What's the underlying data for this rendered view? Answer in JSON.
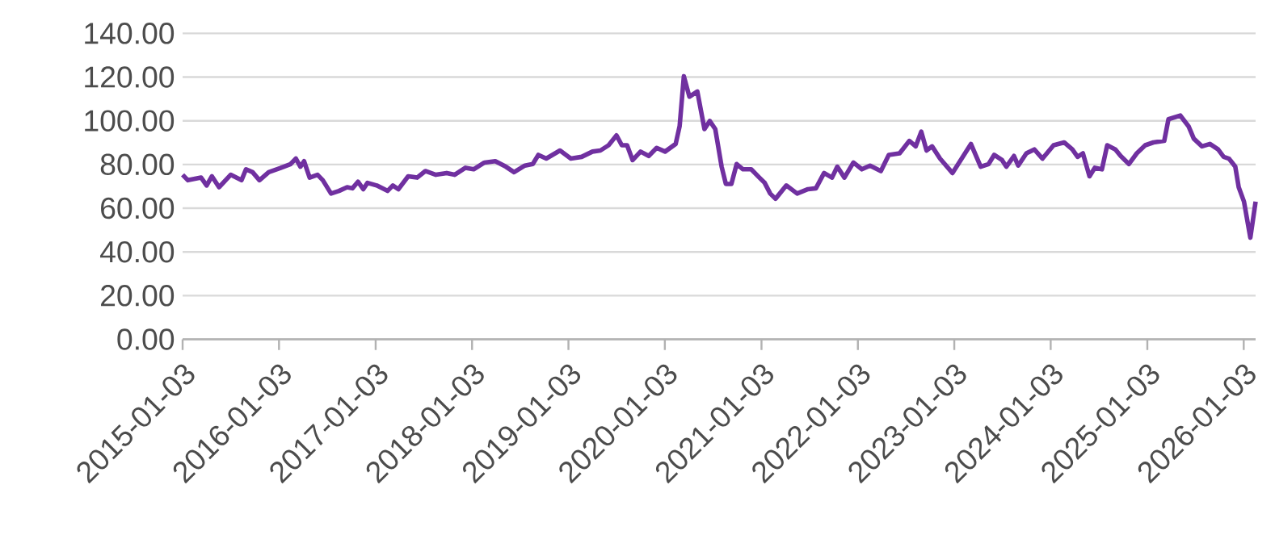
{
  "chart_data": {
    "type": "line",
    "color": "#7030a0",
    "grid": "y",
    "xlim": [
      "2015-01-03",
      "2026-02-17"
    ],
    "ylim": [
      0,
      140
    ],
    "xticks": [
      "2015-01-03",
      "2016-01-03",
      "2017-01-03",
      "2018-01-03",
      "2019-01-03",
      "2020-01-03",
      "2021-01-03",
      "2022-01-03",
      "2023-01-03",
      "2024-01-03",
      "2025-01-03",
      "2026-01-03"
    ],
    "yticks": [
      {
        "value": 0,
        "label": "0.00"
      },
      {
        "value": 20,
        "label": "20.00"
      },
      {
        "value": 40,
        "label": "40.00"
      },
      {
        "value": 60,
        "label": "60.00"
      },
      {
        "value": 80,
        "label": "80.00"
      },
      {
        "value": 100,
        "label": "100.00"
      },
      {
        "value": 120,
        "label": "120.00"
      },
      {
        "value": 140,
        "label": "140.00"
      }
    ],
    "x": [
      "2015-01-03",
      "2015-01-23",
      "2015-03-14",
      "2015-04-04",
      "2015-04-24",
      "2015-05-21",
      "2015-07-04",
      "2015-08-14",
      "2015-08-31",
      "2015-09-25",
      "2015-10-21",
      "2015-11-25",
      "2016-01-07",
      "2016-02-16",
      "2016-03-07",
      "2016-03-24",
      "2016-04-07",
      "2016-04-28",
      "2016-05-28",
      "2016-06-17",
      "2016-07-18",
      "2016-08-17",
      "2016-09-17",
      "2016-10-07",
      "2016-10-28",
      "2016-11-17",
      "2016-12-03",
      "2017-01-07",
      "2017-02-17",
      "2017-03-09",
      "2017-03-30",
      "2017-05-06",
      "2017-06-09",
      "2017-07-10",
      "2017-08-19",
      "2017-09-29",
      "2017-10-29",
      "2017-12-09",
      "2018-01-09",
      "2018-02-19",
      "2018-04-01",
      "2018-05-11",
      "2018-06-11",
      "2018-07-22",
      "2018-08-21",
      "2018-09-11",
      "2018-10-11",
      "2018-12-02",
      "2019-01-12",
      "2019-02-22",
      "2019-04-04",
      "2019-05-04",
      "2019-06-04",
      "2019-07-04",
      "2019-07-24",
      "2019-08-13",
      "2019-09-03",
      "2019-10-03",
      "2019-11-03",
      "2019-12-03",
      "2020-01-04",
      "2020-02-13",
      "2020-02-28",
      "2020-03-15",
      "2020-04-05",
      "2020-05-05",
      "2020-06-01",
      "2020-06-21",
      "2020-07-12",
      "2020-08-05",
      "2020-08-21",
      "2020-09-11",
      "2020-10-01",
      "2020-10-25",
      "2020-11-25",
      "2020-12-26",
      "2021-01-15",
      "2021-02-05",
      "2021-02-25",
      "2021-04-07",
      "2021-05-18",
      "2021-06-28",
      "2021-07-28",
      "2021-08-28",
      "2021-09-27",
      "2021-10-17",
      "2021-11-13",
      "2021-12-17",
      "2022-01-18",
      "2022-02-18",
      "2022-03-31",
      "2022-04-30",
      "2022-06-10",
      "2022-07-17",
      "2022-08-10",
      "2022-08-31",
      "2022-09-20",
      "2022-10-11",
      "2022-11-10",
      "2022-12-27",
      "2023-01-31",
      "2023-03-07",
      "2023-04-13",
      "2023-05-13",
      "2023-06-03",
      "2023-07-03",
      "2023-07-19",
      "2023-08-17",
      "2023-09-02",
      "2023-10-03",
      "2023-11-02",
      "2023-12-03",
      "2024-01-14",
      "2024-02-23",
      "2024-03-25",
      "2024-04-14",
      "2024-05-04",
      "2024-05-29",
      "2024-06-18",
      "2024-07-15",
      "2024-08-04",
      "2024-09-04",
      "2024-09-24",
      "2024-10-25",
      "2024-11-24",
      "2024-12-26",
      "2025-01-26",
      "2025-03-08",
      "2025-03-24",
      "2025-05-08",
      "2025-06-08",
      "2025-06-28",
      "2025-07-29",
      "2025-08-28",
      "2025-09-28",
      "2025-10-19",
      "2025-11-08",
      "2025-12-02",
      "2025-12-15",
      "2026-01-04",
      "2026-01-28",
      "2026-02-17"
    ],
    "values": [
      75.3,
      72.8,
      74,
      70.4,
      74.6,
      69.6,
      75.3,
      72.8,
      77.8,
      76.5,
      72.8,
      76.5,
      78.3,
      80.2,
      82.7,
      79,
      81.5,
      74,
      75.3,
      72.8,
      66.7,
      67.9,
      69.6,
      69.1,
      72.1,
      68.7,
      71.6,
      70.4,
      67.9,
      70.4,
      68.7,
      74.6,
      74,
      77,
      75.3,
      76.1,
      75.3,
      78.5,
      77.8,
      80.9,
      81.5,
      79,
      76.5,
      79.5,
      80.2,
      84.4,
      82.7,
      86.4,
      82.7,
      83.5,
      85.9,
      86.4,
      88.8,
      93.3,
      88.8,
      88.8,
      82,
      85.9,
      83.9,
      87.6,
      85.9,
      89.4,
      97.5,
      120.4,
      111,
      113.4,
      96.2,
      99.9,
      96.2,
      79,
      71.1,
      71.1,
      80.2,
      77.8,
      77.8,
      74,
      71.6,
      66.7,
      64.3,
      70.4,
      66.7,
      68.7,
      69.1,
      76.1,
      74,
      79,
      74,
      80.9,
      77.8,
      79.5,
      77,
      84.4,
      85.1,
      90.8,
      88.3,
      95,
      86.4,
      88.3,
      82.7,
      76.1,
      82.7,
      89.4,
      79,
      80.2,
      84.4,
      82,
      79,
      83.9,
      79.5,
      85.1,
      86.9,
      82.7,
      88.8,
      90.1,
      86.9,
      83.5,
      85.1,
      74.6,
      78.5,
      77.8,
      88.8,
      86.9,
      83.9,
      80.2,
      85.1,
      88.8,
      90.1,
      90.8,
      100.7,
      102.4,
      97.5,
      91.8,
      88.3,
      89.4,
      86.9,
      83.5,
      82.7,
      79,
      69.6,
      63,
      46.5,
      63
    ]
  }
}
